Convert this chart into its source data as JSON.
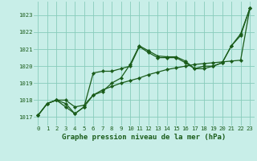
{
  "title": "Graphe pression niveau de la mer (hPa)",
  "bg_color": "#c8eee8",
  "grid_color": "#88ccbb",
  "line_color": "#1a5c1a",
  "marker_color": "#1a5c1a",
  "xlim": [
    -0.5,
    23.5
  ],
  "ylim": [
    1016.5,
    1023.8
  ],
  "yticks": [
    1017,
    1018,
    1019,
    1020,
    1021,
    1022,
    1023
  ],
  "xticks": [
    0,
    1,
    2,
    3,
    4,
    5,
    6,
    7,
    8,
    9,
    10,
    11,
    12,
    13,
    14,
    15,
    16,
    17,
    18,
    19,
    20,
    21,
    22,
    23
  ],
  "line1": [
    1017.1,
    1017.8,
    1018.0,
    1017.8,
    1017.2,
    1017.6,
    1018.3,
    1018.6,
    1018.8,
    1019.0,
    1019.15,
    1019.3,
    1019.5,
    1019.65,
    1019.8,
    1019.9,
    1020.0,
    1020.1,
    1020.15,
    1020.2,
    1020.25,
    1020.3,
    1020.35,
    1023.4
  ],
  "line2": [
    1017.1,
    1017.8,
    1018.0,
    1018.0,
    1017.6,
    1017.7,
    1018.3,
    1018.5,
    1019.0,
    1019.3,
    1020.1,
    1021.2,
    1020.9,
    1020.6,
    1020.55,
    1020.55,
    1020.3,
    1019.85,
    1019.85,
    1020.0,
    1020.2,
    1021.2,
    1021.8,
    1023.4
  ],
  "line3": [
    1017.1,
    1017.8,
    1018.0,
    1017.6,
    1017.2,
    1017.6,
    1019.6,
    1019.7,
    1019.7,
    1019.85,
    1020.0,
    1021.15,
    1020.8,
    1020.5,
    1020.5,
    1020.5,
    1020.2,
    1019.85,
    1020.0,
    1020.0,
    1020.2,
    1021.2,
    1021.9,
    1023.4
  ],
  "title_fontsize": 6.5,
  "tick_fontsize": 5.2,
  "linewidth": 0.9,
  "markersize": 2.2
}
